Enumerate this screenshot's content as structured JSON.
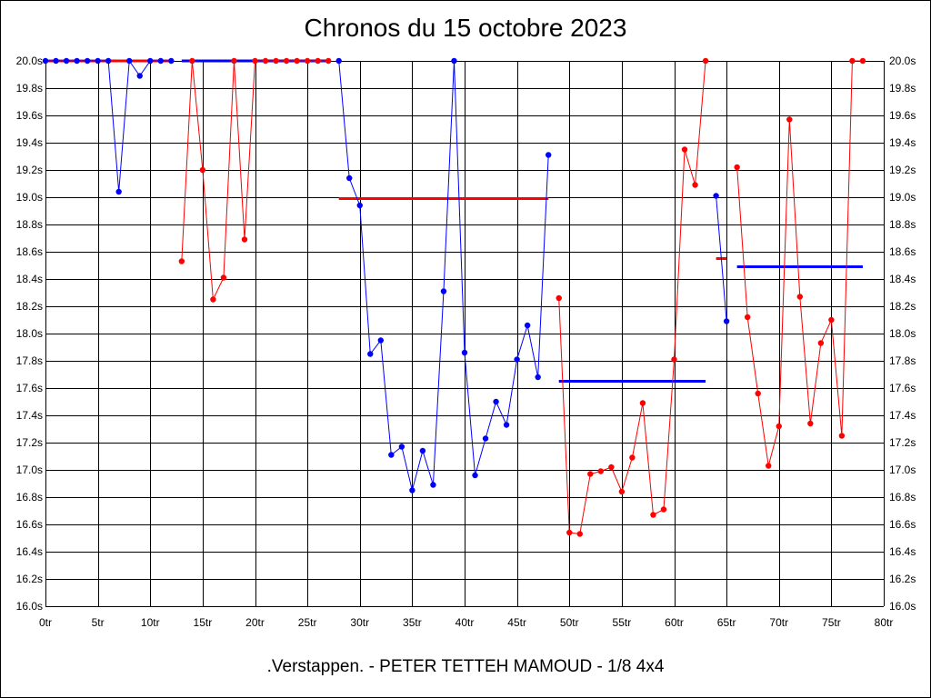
{
  "title": "Chronos du 15 octobre 2023",
  "footer": ".Verstappen. - PETER TETTEH MAMOUD - 1/8 4x4",
  "chart_data": {
    "type": "line",
    "title": "Chronos du 15 octobre 2023",
    "xlim": [
      0,
      80
    ],
    "ylim": [
      16.0,
      20.0
    ],
    "x_ticks": [
      0,
      5,
      10,
      15,
      20,
      25,
      30,
      35,
      40,
      45,
      50,
      55,
      60,
      65,
      70,
      75,
      80
    ],
    "x_tick_labels": [
      "0tr",
      "5tr",
      "10tr",
      "15tr",
      "20tr",
      "25tr",
      "30tr",
      "35tr",
      "40tr",
      "45tr",
      "50tr",
      "55tr",
      "60tr",
      "65tr",
      "70tr",
      "75tr",
      "80tr"
    ],
    "y_ticks": [
      16.0,
      16.2,
      16.4,
      16.6,
      16.8,
      17.0,
      17.2,
      17.4,
      17.6,
      17.8,
      18.0,
      18.2,
      18.4,
      18.6,
      18.8,
      19.0,
      19.2,
      19.4,
      19.6,
      19.8,
      20.0
    ],
    "y_tick_labels": [
      "16.0s",
      "16.2s",
      "16.4s",
      "16.6s",
      "16.8s",
      "17.0s",
      "17.2s",
      "17.4s",
      "17.6s",
      "17.8s",
      "18.0s",
      "18.2s",
      "18.4s",
      "18.6s",
      "18.8s",
      "19.0s",
      "19.2s",
      "19.4s",
      "19.6s",
      "19.8s",
      "20.0s"
    ],
    "y_labels_both_sides": true,
    "grid": true,
    "colors": {
      "blue": "#0000ff",
      "red": "#ff0000",
      "grid": "#000000"
    },
    "series": [
      {
        "color": "#0000ff",
        "x": [
          0,
          1,
          2,
          3,
          4,
          5,
          6,
          7,
          8,
          9,
          10,
          11,
          12
        ],
        "y": [
          20.0,
          20.0,
          20.0,
          20.0,
          20.0,
          20.0,
          20.0,
          19.04,
          20.0,
          19.89,
          20.0,
          20.0,
          20.0
        ]
      },
      {
        "color": "#ff0000",
        "x": [
          13,
          14,
          15,
          16,
          17,
          18,
          19,
          20,
          21,
          22,
          23,
          24,
          25,
          26,
          27
        ],
        "y": [
          18.53,
          20.0,
          19.2,
          18.25,
          18.41,
          20.0,
          18.69,
          20.0,
          20.0,
          20.0,
          20.0,
          20.0,
          20.0,
          20.0,
          20.0
        ]
      },
      {
        "color": "#0000ff",
        "x": [
          28,
          29,
          30,
          31,
          32,
          33,
          34,
          35,
          36,
          37,
          38,
          39,
          40,
          41,
          42,
          43,
          44,
          45,
          46,
          47,
          48
        ],
        "y": [
          20.0,
          19.14,
          18.94,
          17.85,
          17.95,
          17.11,
          17.17,
          16.85,
          17.14,
          16.89,
          18.31,
          20.0,
          17.86,
          16.96,
          17.23,
          17.5,
          17.33,
          17.81,
          18.06,
          17.68,
          19.31
        ]
      },
      {
        "color": "#ff0000",
        "x": [
          49,
          50,
          51,
          52,
          53,
          54,
          55,
          56,
          57,
          58,
          59,
          60,
          61,
          62,
          63
        ],
        "y": [
          18.26,
          16.54,
          16.53,
          16.97,
          16.99,
          17.02,
          16.84,
          17.09,
          17.49,
          16.67,
          16.71,
          17.81,
          19.35,
          19.09,
          20.0
        ]
      },
      {
        "color": "#0000ff",
        "x": [
          64,
          65
        ],
        "y": [
          19.01,
          18.09
        ]
      },
      {
        "color": "#ff0000",
        "x": [
          66,
          67,
          68,
          69,
          70,
          71,
          72,
          73,
          74,
          75,
          76,
          77,
          78
        ],
        "y": [
          19.22,
          18.12,
          17.56,
          17.03,
          17.32,
          19.57,
          18.27,
          17.34,
          17.93,
          18.1,
          17.25,
          20.0,
          20.0
        ]
      }
    ],
    "average_lines": [
      {
        "color": "#ff0000",
        "x": [
          0,
          12
        ],
        "y": 20.0
      },
      {
        "color": "#0000ff",
        "x": [
          13,
          27
        ],
        "y": 20.0
      },
      {
        "color": "#ff0000",
        "x": [
          28,
          48
        ],
        "y": 18.99
      },
      {
        "color": "#0000ff",
        "x": [
          49,
          63
        ],
        "y": 17.65
      },
      {
        "color": "#ff0000",
        "x": [
          64,
          65
        ],
        "y": 18.55
      },
      {
        "color": "#0000ff",
        "x": [
          66,
          78
        ],
        "y": 18.49
      }
    ]
  }
}
